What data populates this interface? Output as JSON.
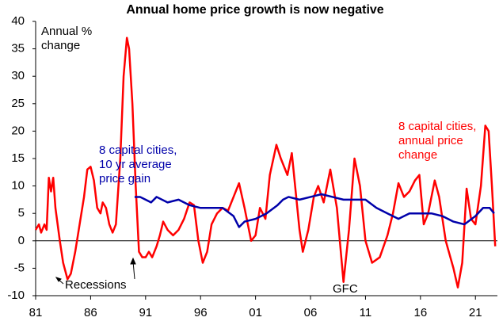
{
  "chart_data": {
    "type": "line",
    "title": "Annual home price growth is now negative",
    "y_label": [
      "Annual %",
      "change"
    ],
    "xlim": [
      1981,
      2023
    ],
    "xticks": [
      {
        "value": 1981,
        "label": "81"
      },
      {
        "value": 1986,
        "label": "86"
      },
      {
        "value": 1991,
        "label": "91"
      },
      {
        "value": 1996,
        "label": "96"
      },
      {
        "value": 2001,
        "label": "01"
      },
      {
        "value": 2006,
        "label": "06"
      },
      {
        "value": 2011,
        "label": "11"
      },
      {
        "value": 2016,
        "label": "16"
      },
      {
        "value": 2021,
        "label": "21"
      }
    ],
    "ylim": [
      -10,
      40
    ],
    "yticks": [
      -10,
      -5,
      0,
      5,
      10,
      15,
      20,
      25,
      30,
      35,
      40
    ],
    "grid": false,
    "series": [
      {
        "label": [
          "8 capital cities,",
          "annual price",
          "change"
        ],
        "color": "#ff0000",
        "x": [
          1981.0,
          1981.3,
          1981.5,
          1981.8,
          1982.0,
          1982.2,
          1982.4,
          1982.6,
          1982.8,
          1983.0,
          1983.2,
          1983.5,
          1983.9,
          1984.2,
          1984.6,
          1985.0,
          1985.4,
          1985.7,
          1986.0,
          1986.3,
          1986.6,
          1986.9,
          1987.1,
          1987.4,
          1987.7,
          1988.0,
          1988.3,
          1988.7,
          1989.0,
          1989.3,
          1989.5,
          1989.8,
          1990.1,
          1990.4,
          1990.7,
          1991.0,
          1991.3,
          1991.6,
          1992.0,
          1992.3,
          1992.6,
          1993.0,
          1993.5,
          1994.0,
          1994.5,
          1995.0,
          1995.4,
          1995.8,
          1996.2,
          1996.6,
          1997.0,
          1997.5,
          1998.0,
          1998.5,
          1999.0,
          1999.5,
          2000.0,
          2000.6,
          2001.0,
          2001.4,
          2001.9,
          2002.3,
          2002.9,
          2003.3,
          2003.9,
          2004.3,
          2004.6,
          2005.0,
          2005.3,
          2005.8,
          2006.3,
          2006.7,
          2007.2,
          2007.8,
          2008.4,
          2009.0,
          2009.5,
          2010.0,
          2010.5,
          2011.0,
          2011.6,
          2012.3,
          2013.0,
          2013.5,
          2014.0,
          2014.5,
          2015.0,
          2015.5,
          2015.9,
          2016.3,
          2016.7,
          2017.3,
          2017.7,
          2018.3,
          2019.0,
          2019.4,
          2019.8,
          2020.2,
          2020.6,
          2021.0,
          2021.5,
          2021.9,
          2022.2,
          2022.5,
          2022.8
        ],
        "values": [
          2,
          3,
          1.5,
          3,
          2,
          11.5,
          9,
          11.5,
          6,
          3,
          0,
          -4,
          -7,
          -6,
          -2,
          3,
          8,
          13,
          13.5,
          11,
          6,
          5,
          7,
          6,
          3,
          1.5,
          3,
          15,
          30,
          37,
          35,
          25,
          10,
          -2,
          -3,
          -3,
          -2,
          -3,
          -1,
          1,
          3.5,
          2,
          1,
          2,
          4,
          7,
          6.5,
          0,
          -4,
          -2,
          3,
          5,
          6,
          5.5,
          8,
          10.5,
          6,
          0,
          1,
          6,
          4,
          12,
          17.5,
          15,
          12,
          16,
          10,
          2,
          -2,
          2,
          8,
          10,
          7,
          13,
          6,
          -7.5,
          2,
          15,
          10,
          0,
          -4,
          -3,
          1,
          5,
          10.5,
          8,
          9,
          11,
          12,
          3,
          5,
          11,
          8,
          0,
          -5,
          -8.5,
          -4,
          9.5,
          4,
          3,
          10,
          21,
          20,
          10,
          -1
        ]
      },
      {
        "label": [
          "8 capital cities,",
          "10 yr average",
          "price gain"
        ],
        "color": "#0000aa",
        "x": [
          1990.0,
          1990.5,
          1991.0,
          1991.5,
          1992.0,
          1993.0,
          1994.0,
          1995.0,
          1996.0,
          1997.0,
          1998.0,
          1999.0,
          1999.5,
          2000.0,
          2001.0,
          2002.0,
          2003.0,
          2003.5,
          2004.0,
          2005.0,
          2006.0,
          2007.0,
          2008.0,
          2009.0,
          2010.0,
          2011.0,
          2012.0,
          2013.0,
          2014.0,
          2015.0,
          2016.0,
          2017.0,
          2018.0,
          2019.0,
          2020.0,
          2021.0,
          2021.7,
          2022.3,
          2022.7
        ],
        "values": [
          8,
          8,
          7.5,
          7,
          8,
          7,
          7.5,
          6.5,
          6,
          6,
          6,
          4.5,
          2.5,
          3.5,
          4,
          5,
          6.5,
          7.5,
          8,
          7.5,
          8,
          8.5,
          8,
          7.5,
          7.5,
          7.5,
          6,
          5,
          4,
          5,
          5,
          5,
          4.5,
          3.5,
          3,
          4.5,
          6,
          6,
          5
        ]
      }
    ],
    "annotations": [
      "Recessions",
      "GFC"
    ]
  }
}
